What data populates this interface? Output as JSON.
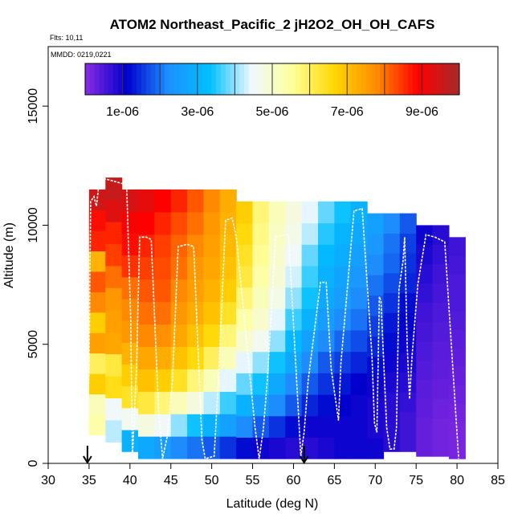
{
  "chart_data": {
    "type": "heatmap",
    "title": "ATOM2 Northeast_Pacific_2 jH2O2_OH_OH_CAFS",
    "flights_label": "Flts: 10,11",
    "dates_label": "MMDD: 0219,0221",
    "xlabel": "Latitude (deg N)",
    "ylabel": "Altitude (m)",
    "xlim": [
      30,
      85
    ],
    "ylim": [
      0,
      17500
    ],
    "x_ticks": [
      "30",
      "35",
      "40",
      "45",
      "50",
      "55",
      "60",
      "65",
      "70",
      "75",
      "80",
      "85"
    ],
    "y_ticks": [
      "0",
      "5000",
      "10000",
      "15000"
    ],
    "colorbar": {
      "min": 0,
      "max": 1e-05,
      "tick_labels": [
        "1e-06",
        "3e-06",
        "5e-06",
        "7e-06",
        "9e-06"
      ],
      "tick_values": [
        1e-06,
        3e-06,
        5e-06,
        7e-06,
        9e-06
      ],
      "colors": [
        "#8a2be2",
        "#0000cd",
        "#1e90ff",
        "#00bfff",
        "#f0f8ff",
        "#ffff99",
        "#ffd700",
        "#ff8c00",
        "#ff0000",
        "#a52a2a"
      ]
    },
    "markers": [
      {
        "lat": 34.8,
        "label": "down-arrow"
      },
      {
        "lat": 61.3,
        "label": "down-arrow"
      }
    ],
    "grid_columns": [
      {
        "lat": 36.0,
        "top": 11500,
        "bottom": 1200,
        "values": [
          5.4e-06,
          5.2e-06,
          6.8e-06,
          6e-06,
          7.5e-06,
          6.8e-06,
          7.8e-06,
          8.2e-06,
          7.2e-06,
          8.6e-06,
          8.8e-06,
          9.5e-06
        ]
      },
      {
        "lat": 38.0,
        "top": 12000,
        "bottom": 900,
        "values": [
          4.2e-06,
          4.5e-06,
          6.5e-06,
          6.2e-06,
          7.4e-06,
          7.5e-06,
          7.6e-06,
          8e-06,
          8.4e-06,
          8.6e-06,
          9.3e-06,
          9.6e-06
        ]
      },
      {
        "lat": 40.0,
        "top": 11500,
        "bottom": 500,
        "values": [
          3e-06,
          4.6e-06,
          6.4e-06,
          6.8e-06,
          7.2e-06,
          7.6e-06,
          7.8e-06,
          8e-06,
          8.5e-06,
          8.8e-06,
          9e-06,
          9.4e-06
        ]
      },
      {
        "lat": 42.0,
        "top": 11500,
        "bottom": 200,
        "values": [
          2.8e-06,
          4.8e-06,
          6.2e-06,
          7e-06,
          7.4e-06,
          7.8e-06,
          8e-06,
          8.2e-06,
          8.4e-06,
          8.6e-06,
          8.9e-06,
          9.2e-06
        ]
      },
      {
        "lat": 44.0,
        "top": 11500,
        "bottom": 200,
        "values": [
          2.5e-06,
          4.5e-06,
          5.8e-06,
          6.8e-06,
          7.3e-06,
          7.7e-06,
          8e-06,
          8.2e-06,
          8.3e-06,
          8.4e-06,
          8.6e-06,
          8.9e-06
        ]
      },
      {
        "lat": 46.0,
        "top": 11500,
        "bottom": 200,
        "values": [
          2.2e-06,
          4e-06,
          5.2e-06,
          6.4e-06,
          7e-06,
          7.4e-06,
          7.6e-06,
          7.8e-06,
          8e-06,
          8.1e-06,
          8.3e-06,
          8.6e-06
        ]
      },
      {
        "lat": 48.0,
        "top": 11500,
        "bottom": 200,
        "values": [
          2e-06,
          3.4e-06,
          4.8e-06,
          5.8e-06,
          6.6e-06,
          7e-06,
          7.3e-06,
          7.5e-06,
          7.6e-06,
          7.8e-06,
          8e-06,
          8.2e-06
        ]
      },
      {
        "lat": 50.0,
        "top": 11500,
        "bottom": 200,
        "values": [
          1.8e-06,
          3e-06,
          4.2e-06,
          5.2e-06,
          6e-06,
          6.6e-06,
          7e-06,
          7.2e-06,
          7.4e-06,
          7.5e-06,
          7.6e-06,
          7.8e-06
        ]
      },
      {
        "lat": 52.0,
        "top": 11500,
        "bottom": 200,
        "values": [
          1.5e-06,
          2.6e-06,
          3.6e-06,
          4.4e-06,
          5.2e-06,
          5.8e-06,
          6.4e-06,
          6.8e-06,
          7e-06,
          7.1e-06,
          7.2e-06,
          7.3e-06
        ]
      },
      {
        "lat": 54.0,
        "top": 11000,
        "bottom": 200,
        "values": [
          1.2e-06,
          2.2e-06,
          3e-06,
          3.8e-06,
          4.4e-06,
          5e-06,
          5.4e-06,
          5.8e-06,
          6.2e-06,
          6.4e-06,
          6.6e-06,
          6.8e-06
        ]
      },
      {
        "lat": 56.0,
        "top": 11000,
        "bottom": 200,
        "values": [
          1e-06,
          1.8e-06,
          2.6e-06,
          3.4e-06,
          4e-06,
          4.6e-06,
          5e-06,
          5.2e-06,
          5.4e-06,
          5.6e-06,
          5.7e-06,
          5.8e-06
        ]
      },
      {
        "lat": 58.0,
        "top": 11000,
        "bottom": 200,
        "values": [
          9e-07,
          1.5e-06,
          2.2e-06,
          2.8e-06,
          3.4e-06,
          4e-06,
          4.4e-06,
          4.7e-06,
          4.9e-06,
          5e-06,
          5.1e-06,
          5.2e-06
        ]
      },
      {
        "lat": 60.0,
        "top": 11000,
        "bottom": 200,
        "values": [
          8e-07,
          1.2e-06,
          1.8e-06,
          2.2e-06,
          2.8e-06,
          3.2e-06,
          3.6e-06,
          4e-06,
          4.3e-06,
          4.5e-06,
          4.7e-06,
          4.8e-06
        ]
      },
      {
        "lat": 62.0,
        "top": 11000,
        "bottom": 200,
        "values": [
          8e-07,
          1e-06,
          1.4e-06,
          1.8e-06,
          2.2e-06,
          2.6e-06,
          3e-06,
          3.4e-06,
          3.6e-06,
          3.8e-06,
          4.2e-06,
          4.4e-06
        ]
      },
      {
        "lat": 64.0,
        "top": 11000,
        "bottom": 200,
        "values": [
          9e-07,
          1e-06,
          1.2e-06,
          1.5e-06,
          1.8e-06,
          2.2e-06,
          2.5e-06,
          2.8e-06,
          3e-06,
          3.2e-06,
          3.5e-06,
          3.8e-06
        ]
      },
      {
        "lat": 66.0,
        "top": 11000,
        "bottom": 200,
        "values": [
          1e-06,
          1e-06,
          1.1e-06,
          1.3e-06,
          1.6e-06,
          1.9e-06,
          2.2e-06,
          2.5e-06,
          2.7e-06,
          2.9e-06,
          3.1e-06,
          3.4e-06
        ]
      },
      {
        "lat": 68.0,
        "top": 11000,
        "bottom": 200,
        "values": [
          1e-06,
          1e-06,
          1e-06,
          1.1e-06,
          1.4e-06,
          1.7e-06,
          2e-06,
          2.2e-06,
          2.4e-06,
          2.6e-06,
          2.8e-06,
          3e-06
        ]
      },
      {
        "lat": 70.0,
        "top": 10500,
        "bottom": 200,
        "values": [
          1e-06,
          9e-07,
          9e-07,
          1e-06,
          1.2e-06,
          1.4e-06,
          1.6e-06,
          1.8e-06,
          2e-06,
          2.2e-06,
          2.4e-06,
          2.6e-06
        ]
      },
      {
        "lat": 72.0,
        "top": 10500,
        "bottom": 500,
        "values": [
          8e-07,
          8e-07,
          8e-07,
          9e-07,
          1e-06,
          1.2e-06,
          1.3e-06,
          1.5e-06,
          1.7e-06,
          1.9e-06,
          2e-06,
          2.2e-06
        ]
      },
      {
        "lat": 74.0,
        "top": 10500,
        "bottom": 500,
        "values": [
          6e-07,
          6e-07,
          7e-07,
          8e-07,
          9e-07,
          1e-06,
          1.1e-06,
          1.2e-06,
          1.4e-06,
          1.5e-06,
          1.6e-06,
          1.8e-06
        ]
      },
      {
        "lat": 76.0,
        "top": 10000,
        "bottom": 300,
        "values": [
          3e-07,
          3e-07,
          3.5e-07,
          4e-07,
          4.5e-07,
          5e-07,
          5.5e-07,
          6e-07,
          7e-07,
          8e-07,
          9e-07,
          1e-06
        ]
      },
      {
        "lat": 78.0,
        "top": 10000,
        "bottom": 300,
        "values": [
          2e-07,
          2e-07,
          2.5e-07,
          3e-07,
          3.5e-07,
          4e-07,
          4.5e-07,
          5e-07,
          5.5e-07,
          6e-07,
          7e-07,
          8e-07
        ]
      },
      {
        "lat": 80.0,
        "top": 9500,
        "bottom": 200,
        "values": [
          1.5e-07,
          1.5e-07,
          2e-07,
          2.5e-07,
          3e-07,
          3.5e-07,
          4e-07,
          4.5e-07,
          5e-07,
          5e-07,
          5.5e-07,
          6e-07
        ]
      }
    ],
    "flight_track": [
      [
        34.8,
        1200
      ],
      [
        35.0,
        4000
      ],
      [
        35.2,
        11000
      ],
      [
        35.6,
        11200
      ],
      [
        35.9,
        10800
      ],
      [
        36.3,
        12000
      ],
      [
        37.5,
        11900
      ],
      [
        38.5,
        11800
      ],
      [
        39.6,
        11700
      ],
      [
        40.1,
        6000
      ],
      [
        40.3,
        300
      ],
      [
        40.8,
        4000
      ],
      [
        41.2,
        9500
      ],
      [
        42.0,
        9500
      ],
      [
        42.6,
        9400
      ],
      [
        43.5,
        2200
      ],
      [
        44.0,
        200
      ],
      [
        44.6,
        1200
      ],
      [
        45.2,
        3500
      ],
      [
        45.9,
        9100
      ],
      [
        47.0,
        9200
      ],
      [
        47.8,
        9100
      ],
      [
        48.8,
        1000
      ],
      [
        49.2,
        200
      ],
      [
        50.3,
        300
      ],
      [
        50.8,
        3400
      ],
      [
        51.7,
        10200
      ],
      [
        52.5,
        10300
      ],
      [
        53.0,
        9500
      ],
      [
        55.3,
        1500
      ],
      [
        55.8,
        200
      ],
      [
        56.3,
        1400
      ],
      [
        56.8,
        3500
      ],
      [
        57.8,
        9500
      ],
      [
        59.0,
        9600
      ],
      [
        59.4,
        9600
      ],
      [
        60.9,
        300
      ],
      [
        61.3,
        1300
      ],
      [
        61.8,
        3500
      ],
      [
        63.3,
        7600
      ],
      [
        64.0,
        7600
      ],
      [
        64.6,
        4000
      ],
      [
        65.5,
        1800
      ],
      [
        65.8,
        4200
      ],
      [
        67.4,
        10600
      ],
      [
        68.4,
        10700
      ],
      [
        69.6,
        4500
      ],
      [
        69.9,
        1700
      ],
      [
        70.2,
        1300
      ],
      [
        70.5,
        7000
      ],
      [
        70.7,
        6800
      ],
      [
        71.4,
        1500
      ],
      [
        71.8,
        600
      ],
      [
        72.3,
        600
      ],
      [
        72.6,
        1500
      ],
      [
        72.9,
        7300
      ],
      [
        73.4,
        8500
      ],
      [
        73.6,
        9500
      ],
      [
        73.9,
        5000
      ],
      [
        74.2,
        2700
      ],
      [
        74.5,
        4500
      ],
      [
        75.2,
        7500
      ],
      [
        76.2,
        9600
      ],
      [
        77.3,
        9500
      ],
      [
        78.5,
        9300
      ],
      [
        80.2,
        200
      ]
    ]
  }
}
